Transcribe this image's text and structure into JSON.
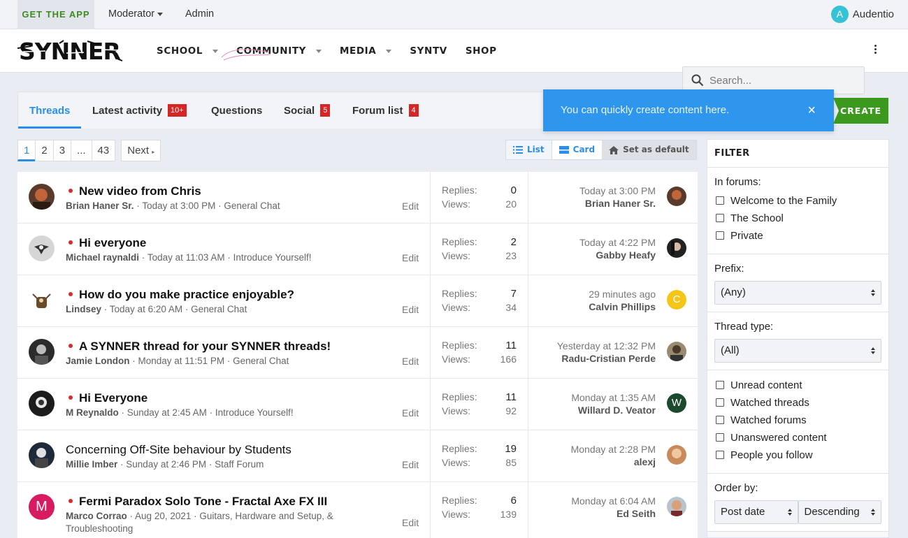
{
  "topbar": {
    "get_app": "GET THE APP",
    "moderator": "Moderator",
    "admin": "Admin",
    "user_initial": "A",
    "user_name": "Audentio"
  },
  "header": {
    "logo_text": "SYNNER",
    "nav": [
      "SCHOOL",
      "COMMUNITY",
      "MEDIA",
      "SYNTV",
      "SHOP"
    ],
    "search_placeholder": "Search..."
  },
  "tabs": [
    {
      "label": "Threads",
      "badge": ""
    },
    {
      "label": "Latest activity",
      "badge": "10+"
    },
    {
      "label": "Questions",
      "badge": ""
    },
    {
      "label": "Social",
      "badge": "5"
    },
    {
      "label": "Forum list",
      "badge": "4"
    }
  ],
  "tooltip": {
    "text": "You can quickly create content here.",
    "close": "×"
  },
  "create_label": "CREATE",
  "pager": {
    "pages": [
      "1",
      "2",
      "3",
      "...",
      "43"
    ],
    "next": "Next"
  },
  "view": {
    "list": "List",
    "card": "Card",
    "default": "Set as default"
  },
  "threads": [
    {
      "title": "New video from Chris",
      "unread": true,
      "author": "Brian Haner Sr.",
      "date": "Today at 3:00 PM",
      "forum": "General Chat",
      "edit": "Edit",
      "replies_label": "Replies:",
      "views_label": "Views:",
      "replies": "0",
      "views": "20",
      "last_time": "Today at 3:00 PM",
      "last_user": "Brian Haner Sr.",
      "last_initial": ""
    },
    {
      "title": "Hi everyone",
      "unread": true,
      "author": "Michael raynaldi",
      "date": "Today at 11:03 AM",
      "forum": "Introduce Yourself!",
      "edit": "Edit",
      "replies_label": "Replies:",
      "views_label": "Views:",
      "replies": "2",
      "views": "23",
      "last_time": "Today at 4:22 PM",
      "last_user": "Gabby Heafy",
      "last_initial": ""
    },
    {
      "title": "How do you make practice enjoyable?",
      "unread": true,
      "author": "Lindsey",
      "date": "Today at 6:20 AM",
      "forum": "General Chat",
      "edit": "Edit",
      "replies_label": "Replies:",
      "views_label": "Views:",
      "replies": "7",
      "views": "34",
      "last_time": "29 minutes ago",
      "last_user": "Calvin Phillips",
      "last_initial": "C"
    },
    {
      "title": "A SYNNER thread for your SYNNER threads!",
      "unread": true,
      "author": "Jamie London",
      "date": "Monday at 11:51 PM",
      "forum": "General Chat",
      "edit": "Edit",
      "replies_label": "Replies:",
      "views_label": "Views:",
      "replies": "11",
      "views": "166",
      "last_time": "Yesterday at 12:32 PM",
      "last_user": "Radu-Cristian Perde",
      "last_initial": ""
    },
    {
      "title": "Hi Everyone",
      "unread": true,
      "author": "M Reynaldo",
      "date": "Sunday at 2:45 AM",
      "forum": "Introduce Yourself!",
      "edit": "Edit",
      "replies_label": "Replies:",
      "views_label": "Views:",
      "replies": "11",
      "views": "92",
      "last_time": "Monday at 1:35 AM",
      "last_user": "Willard D. Veator",
      "last_initial": "W"
    },
    {
      "title": "Concerning Off-Site behaviour by Students",
      "unread": false,
      "author": "Millie Imber",
      "date": "Sunday at 2:46 PM",
      "forum": "Staff Forum",
      "edit": "Edit",
      "replies_label": "Replies:",
      "views_label": "Views:",
      "replies": "19",
      "views": "85",
      "last_time": "Monday at 2:28 PM",
      "last_user": "alexj",
      "last_initial": ""
    },
    {
      "title": "Fermi Paradox Solo Tone - Fractal Axe FX III",
      "unread": true,
      "author": "Marco Corrao",
      "date": "Aug 20, 2021",
      "forum": "Guitars, Hardware and Setup, & Troubleshooting",
      "edit": "Edit",
      "replies_label": "Replies:",
      "views_label": "Views:",
      "replies": "6",
      "views": "139",
      "last_time": "Monday at 6:04 AM",
      "last_user": "Ed Seith",
      "last_initial": "",
      "author_initial": "M"
    }
  ],
  "filter": {
    "title": "FILTER",
    "in_forums": "In forums:",
    "forums": [
      "Welcome to the Family",
      "The School",
      "Private"
    ],
    "prefix_label": "Prefix:",
    "prefix_value": "(Any)",
    "type_label": "Thread type:",
    "type_value": "(All)",
    "checks": [
      "Unread content",
      "Watched threads",
      "Watched forums",
      "Unanswered content",
      "People you follow"
    ],
    "order_label": "Order by:",
    "order_value": "Post date",
    "direction_value": "Descending"
  },
  "colors": {
    "accent": "#2a8ee8",
    "create": "#3b9a1d",
    "badge": "#d52525",
    "unread_dot": "#d62b2b",
    "tooltip": "#2f96ee"
  }
}
